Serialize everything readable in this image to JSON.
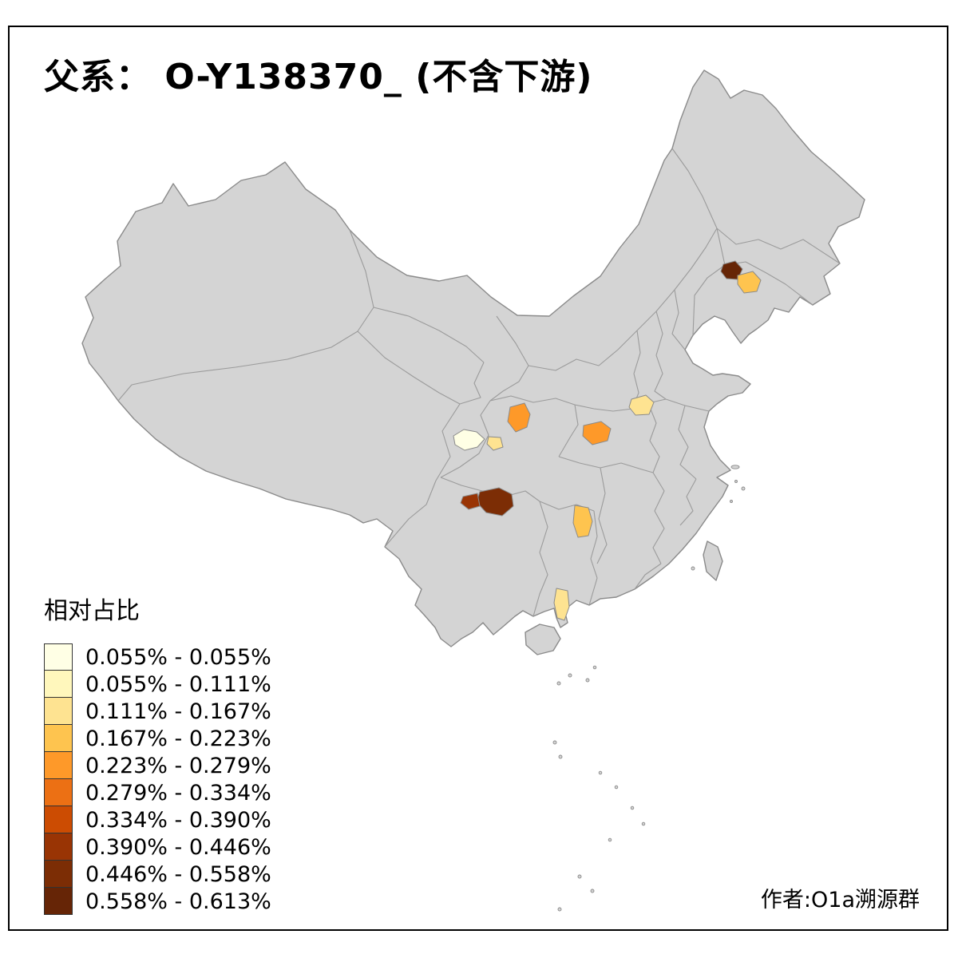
{
  "title": "父系： O-Y138370_ (不含下游)",
  "author": "作者:O1a溯源群",
  "legend": {
    "title": "相对占比",
    "items": [
      {
        "label": "0.055% - 0.055%",
        "color": "#FFFFE5"
      },
      {
        "label": "0.055% - 0.111%",
        "color": "#FFF7BC"
      },
      {
        "label": "0.111% - 0.167%",
        "color": "#FEE391"
      },
      {
        "label": "0.167% - 0.223%",
        "color": "#FEC44F"
      },
      {
        "label": "0.223% - 0.279%",
        "color": "#FE9929"
      },
      {
        "label": "0.279% - 0.334%",
        "color": "#EC7014"
      },
      {
        "label": "0.334% - 0.390%",
        "color": "#CC4C02"
      },
      {
        "label": "0.390% - 0.446%",
        "color": "#993404"
      },
      {
        "label": "0.446% - 0.558%",
        "color": "#7C2D05"
      },
      {
        "label": "0.558% - 0.613%",
        "color": "#662506"
      }
    ]
  },
  "map": {
    "land_fill": "#D4D4D4",
    "boundary_color": "#8A8A8A",
    "inner_border_color": "#9B9B9B",
    "background": "#FFFFFF",
    "regions": [
      {
        "id": "r-northeast-a",
        "color": "#662506"
      },
      {
        "id": "r-northeast-b",
        "color": "#FEC44F"
      },
      {
        "id": "r-henan",
        "color": "#FEE391"
      },
      {
        "id": "r-sichuan-a",
        "color": "#FE9929"
      },
      {
        "id": "r-sichuan-b",
        "color": "#FFFFE5"
      },
      {
        "id": "r-sichuan-c",
        "color": "#FEE391"
      },
      {
        "id": "r-hubei",
        "color": "#FE9929"
      },
      {
        "id": "r-yunnan-a",
        "color": "#7C2D05"
      },
      {
        "id": "r-yunnan-b",
        "color": "#993404"
      },
      {
        "id": "r-hunan",
        "color": "#FEC44F"
      },
      {
        "id": "r-leizhou",
        "color": "#FEE391"
      }
    ]
  },
  "chart_data": {
    "type": "choropleth",
    "title": "父系： O-Y138370_ (不含下游)",
    "legend_title": "相对占比",
    "legend_position": "bottom-left",
    "value_range": [
      "0.055%",
      "0.613%"
    ],
    "bins": [
      "0.055% - 0.055%",
      "0.055% - 0.111%",
      "0.111% - 0.167%",
      "0.167% - 0.223%",
      "0.223% - 0.279%",
      "0.279% - 0.334%",
      "0.334% - 0.390%",
      "0.390% - 0.446%",
      "0.446% - 0.558%",
      "0.558% - 0.613%"
    ],
    "bin_colors": [
      "#FFFFE5",
      "#FFF7BC",
      "#FEE391",
      "#FEC44F",
      "#FE9929",
      "#EC7014",
      "#CC4C02",
      "#993404",
      "#7C2D05",
      "#662506"
    ],
    "highlighted_regions": [
      {
        "area": "northeast (Liaoning)",
        "color": "#662506"
      },
      {
        "area": "northeast (Liaoning, adjacent)",
        "color": "#FEC44F"
      },
      {
        "area": "central plain (Henan)",
        "color": "#FEE391"
      },
      {
        "area": "Sichuan north",
        "color": "#FE9929"
      },
      {
        "area": "Sichuan west basin",
        "color": "#FFFFE5"
      },
      {
        "area": "Sichuan basin small",
        "color": "#FEE391"
      },
      {
        "area": "Hubei/Chongqing",
        "color": "#FE9929"
      },
      {
        "area": "Yunnan large",
        "color": "#7C2D05"
      },
      {
        "area": "Yunnan small west",
        "color": "#993404"
      },
      {
        "area": "Hunan",
        "color": "#FEC44F"
      },
      {
        "area": "Leizhou peninsula",
        "color": "#FEE391"
      }
    ]
  }
}
